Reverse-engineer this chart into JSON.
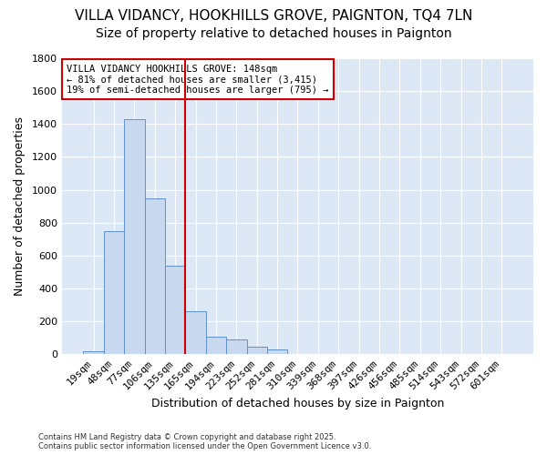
{
  "title": "VILLA VIDANCY, HOOKHILLS GROVE, PAIGNTON, TQ4 7LN",
  "subtitle": "Size of property relative to detached houses in Paignton",
  "xlabel": "Distribution of detached houses by size in Paignton",
  "ylabel": "Number of detached properties",
  "categories": [
    "19sqm",
    "48sqm",
    "77sqm",
    "106sqm",
    "135sqm",
    "165sqm",
    "194sqm",
    "223sqm",
    "252sqm",
    "281sqm",
    "310sqm",
    "339sqm",
    "368sqm",
    "397sqm",
    "426sqm",
    "456sqm",
    "485sqm",
    "514sqm",
    "543sqm",
    "572sqm",
    "601sqm"
  ],
  "bar_values": [
    19,
    750,
    1430,
    950,
    540,
    265,
    105,
    90,
    45,
    30,
    5,
    3,
    2,
    1,
    0,
    1,
    0,
    0,
    0,
    0,
    0
  ],
  "bar_color": "#c8d8ee",
  "bar_edge_color": "#6090cc",
  "bar_edge_width": 0.7,
  "vline_color": "#cc0000",
  "annotation_title": "VILLA VIDANCY HOOKHILLS GROVE: 148sqm",
  "annotation_line1": "← 81% of detached houses are smaller (3,415)",
  "annotation_line2": "19% of semi-detached houses are larger (795) →",
  "annotation_box_color": "#ffffff",
  "annotation_box_edge": "#cc0000",
  "ylim": [
    0,
    1800
  ],
  "yticks": [
    0,
    200,
    400,
    600,
    800,
    1000,
    1200,
    1400,
    1600,
    1800
  ],
  "grid_color": "#ffffff",
  "bg_color": "#dce8f5",
  "fig_bg_color": "#ffffff",
  "title_fontsize": 11,
  "subtitle_fontsize": 10,
  "axis_label_fontsize": 9,
  "tick_fontsize": 8,
  "footer_line1": "Contains HM Land Registry data © Crown copyright and database right 2025.",
  "footer_line2": "Contains public sector information licensed under the Open Government Licence v3.0."
}
